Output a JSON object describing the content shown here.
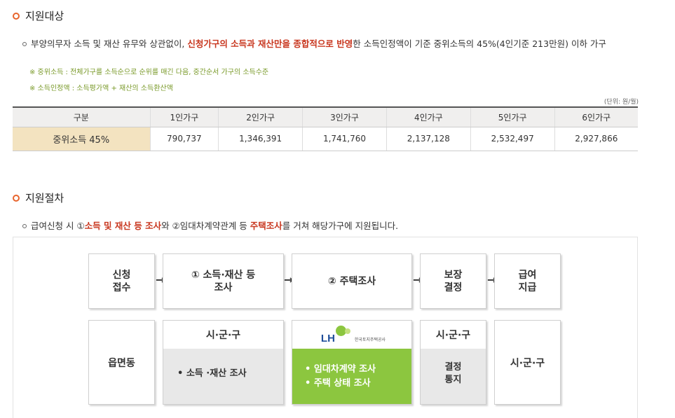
{
  "section1": {
    "title": "지원대상",
    "desc_pre": "부양의무자 소득 및 재산 유무와 상관없이, ",
    "desc_highlight": "신청가구의 소득과 재산만을 종합적으로 반영",
    "desc_post": "한 소득인정액이 기준 중위소득의 45%(4인기준 213만원) 이하 가구",
    "note1": "※ 중위소득 : 전체가구를 소득순으로 순위를 매긴 다음, 중간순서 가구의 소득수준",
    "note2": "※ 소득인정액 : 소득평가액 + 재산의 소득환산액",
    "unit": "(단위: 원/월)",
    "table": {
      "headers": [
        "구분",
        "1인가구",
        "2인가구",
        "3인가구",
        "4인가구",
        "5인가구",
        "6인가구"
      ],
      "row_label": "중위소득 45%",
      "values": [
        "790,737",
        "1,346,391",
        "1,741,760",
        "2,137,128",
        "2,532,497",
        "2,927,866"
      ]
    }
  },
  "section2": {
    "title": "지원절차",
    "desc_pre": "급여신청 시 ①",
    "desc_hl1": "소득 및 재산 등 조사",
    "desc_mid": "와 ②임대차계약관계 등 ",
    "desc_hl2": "주택조사",
    "desc_post": "를 거쳐 해당가구에 지원됩니다.",
    "steps": [
      "신청\n접수",
      "① 소득·재산 등\n조사",
      "② 주택조사",
      "보장\n결정",
      "급여\n지급"
    ],
    "arrow": "→",
    "agencies": {
      "c1": "읍면동",
      "c2_head": "시·군·구",
      "c2_body": "• 소득 ·재산 조사",
      "c3_logo": "LH",
      "c3_logo_sub": "한국토지주택공사",
      "c3_body1": "• 임대차계약 조사",
      "c3_body2": "• 주택 상태 조사",
      "c4_head": "시·군·구",
      "c4_body": "결정\n통지",
      "c5": "시·군·구"
    }
  },
  "colors": {
    "accent": "#e8642c",
    "highlight": "#c8361e",
    "lh_green": "#8cc63f",
    "row_head": "#f3e3c0"
  }
}
